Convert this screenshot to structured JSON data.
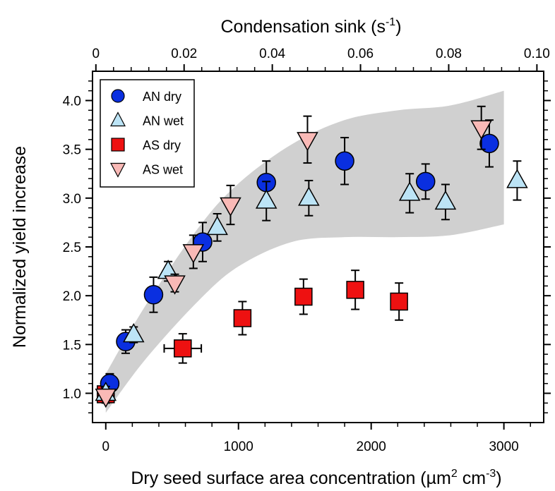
{
  "chart_data": {
    "type": "scatter",
    "xlabel_bottom": {
      "text": "Dry seed surface area concentration (µm",
      "sup1": "2",
      "mid": " cm",
      "sup2": "-3",
      "end": ")"
    },
    "xlabel_top": {
      "text": "Condensation sink (s",
      "sup": "-1",
      "end": ")"
    },
    "ylabel": "Normalized yield increase",
    "xlim": [
      -100,
      3300
    ],
    "ylim": [
      0.7,
      4.3
    ],
    "top_xlim": [
      -0.00077,
      0.10154
    ],
    "x_ticks": [
      0,
      1000,
      2000,
      3000
    ],
    "x_tick_labels": [
      "0",
      "1000",
      "2000",
      "3000"
    ],
    "y_ticks": [
      1.0,
      1.5,
      2.0,
      2.5,
      3.0,
      3.5,
      4.0
    ],
    "y_tick_labels": [
      "1.0",
      "1.5",
      "2.0",
      "2.5",
      "3.0",
      "3.5",
      "4.0"
    ],
    "top_ticks": [
      0,
      0.02,
      0.04,
      0.06,
      0.08,
      0.1
    ],
    "top_tick_labels": [
      "0",
      "0.02",
      "0.04",
      "0.06",
      "0.08",
      "0.10"
    ],
    "grid": false,
    "legend_position": "top-left",
    "band": {
      "upper": [
        [
          0,
          1.2
        ],
        [
          300,
          1.9
        ],
        [
          700,
          2.7
        ],
        [
          1000,
          3.15
        ],
        [
          1400,
          3.55
        ],
        [
          1800,
          3.8
        ],
        [
          2200,
          3.9
        ],
        [
          2600,
          3.95
        ],
        [
          3000,
          4.1
        ]
      ],
      "lower": [
        [
          0,
          0.8
        ],
        [
          300,
          1.35
        ],
        [
          700,
          1.95
        ],
        [
          1000,
          2.3
        ],
        [
          1400,
          2.55
        ],
        [
          1800,
          2.6
        ],
        [
          2200,
          2.6
        ],
        [
          2600,
          2.62
        ],
        [
          3000,
          2.73
        ]
      ],
      "color": "#d0d0d0"
    },
    "series": [
      {
        "name": "AN dry",
        "marker": "circle",
        "color": "#0a2fe0",
        "points": [
          {
            "x": 30,
            "y": 1.1,
            "err": 0.1
          },
          {
            "x": 150,
            "y": 1.53,
            "err": 0.12
          },
          {
            "x": 360,
            "y": 2.01,
            "err": 0.18
          },
          {
            "x": 730,
            "y": 2.55,
            "err": 0.2
          },
          {
            "x": 1210,
            "y": 3.16,
            "err": 0.22
          },
          {
            "x": 1800,
            "y": 3.38,
            "err": 0.24
          },
          {
            "x": 2410,
            "y": 3.17,
            "err": 0.18
          },
          {
            "x": 2890,
            "y": 3.56,
            "err": 0.24
          }
        ]
      },
      {
        "name": "AN wet",
        "marker": "triangle-up",
        "color": "#bce4f6",
        "points": [
          {
            "x": 0,
            "y": 1.0,
            "err": 0.07
          },
          {
            "x": 210,
            "y": 1.6,
            "err": 0.08
          },
          {
            "x": 470,
            "y": 2.25,
            "err": 0.1
          },
          {
            "x": 840,
            "y": 2.7,
            "err": 0.14
          },
          {
            "x": 1210,
            "y": 2.97,
            "err": 0.2
          },
          {
            "x": 1530,
            "y": 3.0,
            "err": 0.18
          },
          {
            "x": 2290,
            "y": 3.05,
            "err": 0.2
          },
          {
            "x": 2560,
            "y": 2.96,
            "err": 0.18
          },
          {
            "x": 3100,
            "y": 3.18,
            "err": 0.2
          }
        ]
      },
      {
        "name": "AS dry",
        "marker": "square",
        "color": "#ee1111",
        "points": [
          {
            "x": 0,
            "y": 0.99,
            "err": 0.05
          },
          {
            "x": 580,
            "y": 1.46,
            "err": 0.15,
            "xerr": 140
          },
          {
            "x": 1030,
            "y": 1.77,
            "err": 0.17
          },
          {
            "x": 1490,
            "y": 1.99,
            "err": 0.18
          },
          {
            "x": 1880,
            "y": 2.06,
            "err": 0.2
          },
          {
            "x": 2210,
            "y": 1.94,
            "err": 0.19
          }
        ]
      },
      {
        "name": "AS wet",
        "marker": "triangle-down",
        "color": "#f9b9b6",
        "points": [
          {
            "x": 0,
            "y": 0.97,
            "err": 0.07
          },
          {
            "x": 520,
            "y": 2.13,
            "err": 0.09
          },
          {
            "x": 660,
            "y": 2.45,
            "err": 0.17
          },
          {
            "x": 940,
            "y": 2.93,
            "err": 0.2
          },
          {
            "x": 1520,
            "y": 3.6,
            "err": 0.24
          },
          {
            "x": 2830,
            "y": 3.72,
            "err": 0.22
          }
        ]
      }
    ]
  }
}
